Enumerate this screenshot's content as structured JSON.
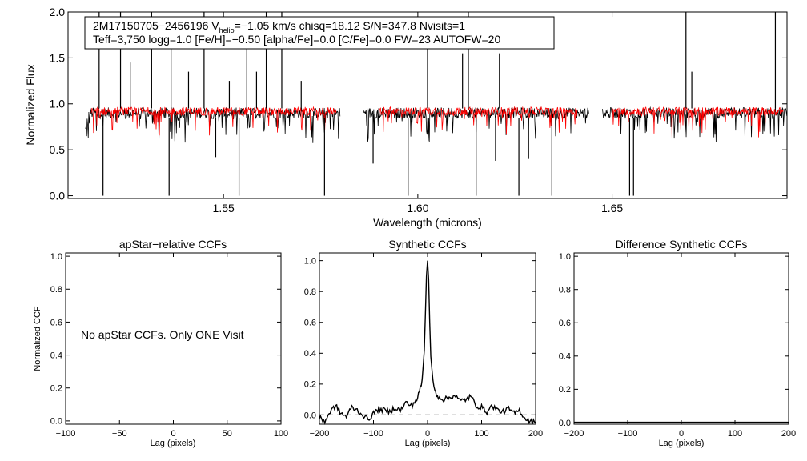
{
  "chart_data": [
    {
      "type": "line",
      "name": "spectrum",
      "title": "",
      "xlabel": "Wavelength (microns)",
      "ylabel": "Normalized Flux",
      "xlim": [
        1.51,
        1.695
      ],
      "ylim": [
        -0.03,
        2.0
      ],
      "xticks": [
        {
          "value": 1.55,
          "label": "1.55"
        },
        {
          "value": 1.6,
          "label": "1.60"
        },
        {
          "value": 1.65,
          "label": "1.65"
        }
      ],
      "yticks": [
        {
          "value": 0.0,
          "label": "0.0"
        },
        {
          "value": 0.5,
          "label": "0.5"
        },
        {
          "value": 1.0,
          "label": "1.0"
        },
        {
          "value": 1.5,
          "label": "1.5"
        },
        {
          "value": 2.0,
          "label": "2.0"
        }
      ],
      "annotation": {
        "line1_prefix": "2M17150705−2456196  V",
        "line1_sub": "helio",
        "line1_suffix": "=−1.05 km/s  chisq=18.12  S/N=347.8  Nvisits=1",
        "line2": "Teff=3,750 logg=1.0 [Fe/H]=−0.50 [alpha/Fe]=0.0 [C/Fe]=0.0 FW=23 AUTOFW=20"
      },
      "series": [
        {
          "name": "Observed spectrum",
          "color": "#000000",
          "level": 0.9,
          "chip_ranges": [
            [
              1.5145,
              1.58
            ],
            [
              1.586,
              1.644
            ],
            [
              1.6475,
              1.6955
            ]
          ]
        },
        {
          "name": "Synthetic model",
          "color": "#ff0000",
          "level": 0.92,
          "chip_ranges": [
            [
              1.516,
              1.579
            ],
            [
              1.59,
              1.641
            ],
            [
              1.65,
              1.694
            ]
          ]
        }
      ],
      "spikes_up": [
        [
          1.518,
          2.0
        ],
        [
          1.5235,
          2.0
        ],
        [
          1.526,
          1.45
        ],
        [
          1.5315,
          2.0
        ],
        [
          1.5365,
          1.65
        ],
        [
          1.541,
          1.35
        ],
        [
          1.545,
          2.0
        ],
        [
          1.5515,
          1.25
        ],
        [
          1.556,
          1.8
        ],
        [
          1.5585,
          1.35
        ],
        [
          1.561,
          2.0
        ],
        [
          1.565,
          2.0
        ],
        [
          1.57,
          1.25
        ],
        [
          1.6025,
          1.62
        ],
        [
          1.6115,
          1.55
        ],
        [
          1.613,
          2.0
        ],
        [
          1.621,
          1.55
        ],
        [
          1.669,
          2.0
        ],
        [
          1.6705,
          1.35
        ],
        [
          1.692,
          2.0
        ]
      ],
      "spikes_down": [
        [
          1.519,
          0.0
        ],
        [
          1.536,
          0.0
        ],
        [
          1.554,
          0.0
        ],
        [
          1.576,
          0.0
        ],
        [
          1.5975,
          0.0
        ],
        [
          1.615,
          0.0
        ],
        [
          1.626,
          0.0
        ],
        [
          1.6345,
          0.0
        ],
        [
          1.6545,
          0.0
        ],
        [
          1.6555,
          0.0
        ],
        [
          1.62,
          0.38
        ],
        [
          1.548,
          0.42
        ],
        [
          1.6285,
          0.4
        ],
        [
          1.5885,
          0.35
        ]
      ]
    },
    {
      "type": "line",
      "name": "apstar-ccf",
      "title": "apStar−relative CCFs",
      "xlabel": "Lag (pixels)",
      "ylabel": "Normalized CCF",
      "xlim": [
        -100,
        100
      ],
      "ylim": [
        -0.02,
        1.02
      ],
      "xticks": [
        {
          "value": -100,
          "label": "−100"
        },
        {
          "value": -50,
          "label": "−50"
        },
        {
          "value": 0,
          "label": "0"
        },
        {
          "value": 50,
          "label": "50"
        },
        {
          "value": 100,
          "label": "100"
        }
      ],
      "yticks": [
        {
          "value": 0.0,
          "label": "0.0"
        },
        {
          "value": 0.2,
          "label": "0.2"
        },
        {
          "value": 0.4,
          "label": "0.4"
        },
        {
          "value": 0.6,
          "label": "0.6"
        },
        {
          "value": 0.8,
          "label": "0.8"
        },
        {
          "value": 1.0,
          "label": "1.0"
        }
      ],
      "message": "No apStar CCFs.  Only ONE Visit",
      "series": []
    },
    {
      "type": "line",
      "name": "synthetic-ccf",
      "title": "Synthetic CCFs",
      "xlabel": "Lag (pixels)",
      "ylabel": "",
      "xlim": [
        -200,
        200
      ],
      "ylim": [
        -0.06,
        1.05
      ],
      "xticks": [
        {
          "value": -200,
          "label": "−200"
        },
        {
          "value": -100,
          "label": "−100"
        },
        {
          "value": 0,
          "label": "0"
        },
        {
          "value": 100,
          "label": "100"
        },
        {
          "value": 200,
          "label": "200"
        }
      ],
      "yticks": [
        {
          "value": 0.0,
          "label": "0.0"
        },
        {
          "value": 0.2,
          "label": "0.2"
        },
        {
          "value": 0.4,
          "label": "0.4"
        },
        {
          "value": 0.6,
          "label": "0.6"
        },
        {
          "value": 0.8,
          "label": "0.8"
        },
        {
          "value": 1.0,
          "label": "1.0"
        }
      ],
      "baseline": 0.0,
      "series": [
        {
          "name": "CCF",
          "color": "#000000",
          "x": [
            -200,
            -190,
            -180,
            -170,
            -160,
            -150,
            -140,
            -130,
            -120,
            -110,
            -100,
            -90,
            -80,
            -70,
            -60,
            -50,
            -40,
            -30,
            -20,
            -15,
            -10,
            -6,
            -4,
            -2,
            0,
            2,
            4,
            6,
            10,
            15,
            20,
            30,
            40,
            50,
            60,
            70,
            80,
            90,
            100,
            110,
            120,
            130,
            140,
            150,
            160,
            170,
            180,
            190,
            200
          ],
          "y": [
            -0.02,
            -0.04,
            0.02,
            0.06,
            0.01,
            -0.01,
            0.05,
            0.03,
            0.0,
            -0.03,
            0.01,
            0.04,
            0.03,
            0.02,
            0.05,
            0.03,
            0.08,
            0.06,
            0.1,
            0.15,
            0.22,
            0.42,
            0.65,
            0.9,
            1.0,
            0.88,
            0.6,
            0.38,
            0.22,
            0.14,
            0.12,
            0.1,
            0.11,
            0.13,
            0.09,
            0.1,
            0.12,
            0.06,
            0.05,
            0.02,
            0.06,
            0.03,
            0.02,
            0.04,
            0.01,
            0.03,
            -0.02,
            -0.04,
            -0.05
          ]
        }
      ]
    },
    {
      "type": "line",
      "name": "difference-ccf",
      "title": "Difference Synthetic CCFs",
      "xlabel": "Lag (pixels)",
      "ylabel": "",
      "xlim": [
        -200,
        200
      ],
      "ylim": [
        -0.01,
        1.02
      ],
      "xticks": [
        {
          "value": -200,
          "label": "−200"
        },
        {
          "value": -100,
          "label": "−100"
        },
        {
          "value": 0,
          "label": "0"
        },
        {
          "value": 100,
          "label": "100"
        },
        {
          "value": 200,
          "label": "200"
        }
      ],
      "yticks": [
        {
          "value": 0.0,
          "label": "0.0"
        },
        {
          "value": 0.2,
          "label": "0.2"
        },
        {
          "value": 0.4,
          "label": "0.4"
        },
        {
          "value": 0.6,
          "label": "0.6"
        },
        {
          "value": 0.8,
          "label": "0.8"
        },
        {
          "value": 1.0,
          "label": "1.0"
        }
      ],
      "series": [
        {
          "name": "Difference CCF",
          "color": "#000000",
          "x": [
            -200,
            200
          ],
          "y": [
            0.0,
            0.0
          ]
        }
      ]
    }
  ]
}
